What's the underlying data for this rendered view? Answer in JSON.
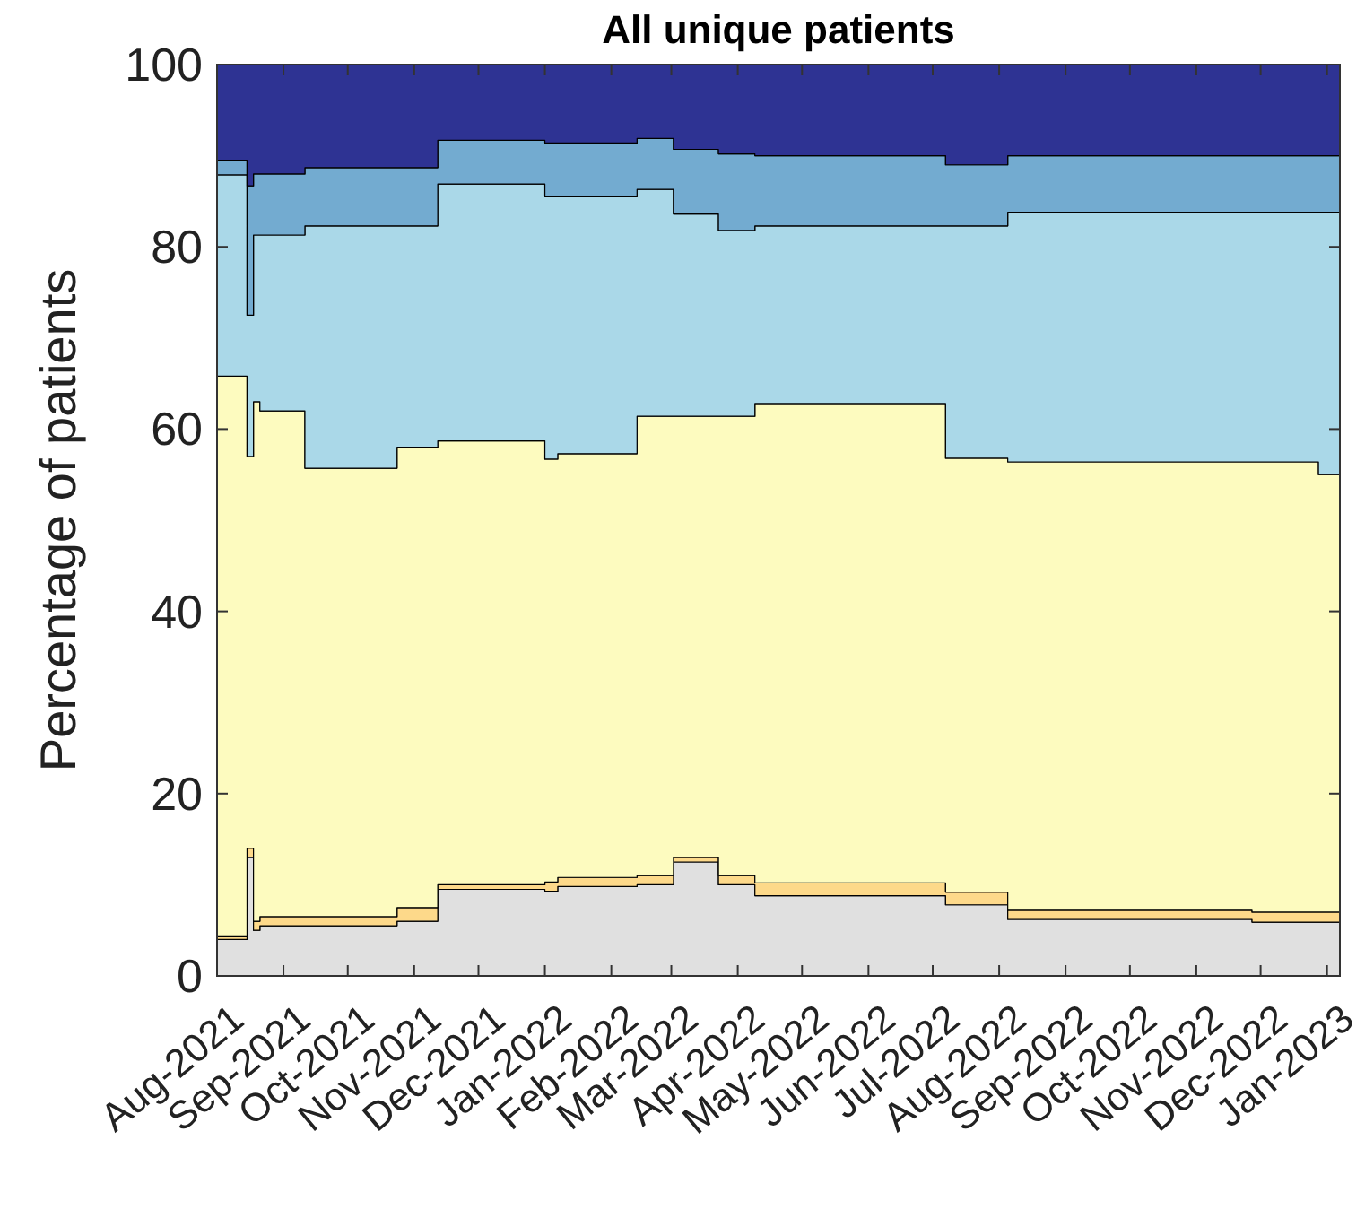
{
  "chart_data": {
    "type": "area",
    "stacked": true,
    "title": "All unique patients",
    "ylabel": "Percentage of patients",
    "x": [
      "2021-08-01",
      "2021-08-15",
      "2021-08-18",
      "2021-08-21",
      "2021-09-11",
      "2021-10-24",
      "2021-11-12",
      "2022-01-01",
      "2022-01-07",
      "2022-02-13",
      "2022-03-02",
      "2022-03-23",
      "2022-04-09",
      "2022-07-07",
      "2022-08-05",
      "2022-11-27",
      "2022-12-28",
      "2023-01-07"
    ],
    "series": [
      {
        "color": "#e0e0e0",
        "values": [
          4,
          13,
          5,
          5.5,
          5.5,
          6,
          9.5,
          9.3,
          9.8,
          10,
          12.5,
          10,
          8.8,
          7.8,
          6.2,
          5.9,
          5.9,
          5.9
        ]
      },
      {
        "color": "#fdd98a",
        "values": [
          0.3,
          1,
          1,
          1,
          1,
          1.5,
          0.5,
          1,
          1,
          1,
          0.5,
          1,
          1.4,
          1.4,
          1,
          1.1,
          1.1,
          1.1
        ]
      },
      {
        "color": "#fdfbbf",
        "values": [
          61.5,
          43,
          57,
          55.5,
          49.2,
          50.5,
          48.7,
          46.4,
          46.5,
          50.4,
          48.4,
          50.4,
          52.6,
          47.6,
          49.2,
          49.4,
          48,
          48
        ]
      },
      {
        "color": "#aad8e8",
        "values": [
          22.1,
          15.5,
          18.3,
          19.3,
          26.6,
          24.3,
          28.2,
          28.8,
          28.2,
          24.9,
          22.2,
          20.4,
          19.5,
          25.5,
          27.4,
          27.4,
          28.8,
          28.8
        ]
      },
      {
        "color": "#73abd0",
        "values": [
          1.6,
          14.2,
          6.7,
          6.7,
          6.4,
          6.4,
          4.8,
          5.9,
          5.9,
          5.6,
          7.1,
          8.4,
          7.7,
          6.7,
          6.2,
          6.2,
          6.2,
          6.2
        ]
      },
      {
        "color": "#2e3393",
        "values": [
          10.5,
          13.3,
          12,
          12,
          11.3,
          11.3,
          8.3,
          8.6,
          8.6,
          8.1,
          9.3,
          9.8,
          10,
          11,
          10,
          10,
          10,
          10
        ]
      }
    ],
    "xlim": [
      "2021-08-01",
      "2023-01-07"
    ],
    "xticks": [
      {
        "value": "2021-08-01",
        "label": "Aug-2021"
      },
      {
        "value": "2021-09-01",
        "label": "Sep-2021"
      },
      {
        "value": "2021-10-01",
        "label": "Oct-2021"
      },
      {
        "value": "2021-11-01",
        "label": "Nov-2021"
      },
      {
        "value": "2021-12-01",
        "label": "Dec-2021"
      },
      {
        "value": "2022-01-01",
        "label": "Jan-2022"
      },
      {
        "value": "2022-02-01",
        "label": "Feb-2022"
      },
      {
        "value": "2022-03-01",
        "label": "Mar-2022"
      },
      {
        "value": "2022-04-01",
        "label": "Apr-2022"
      },
      {
        "value": "2022-05-01",
        "label": "May-2022"
      },
      {
        "value": "2022-06-01",
        "label": "Jun-2022"
      },
      {
        "value": "2022-07-01",
        "label": "Jul-2022"
      },
      {
        "value": "2022-08-01",
        "label": "Aug-2022"
      },
      {
        "value": "2022-09-01",
        "label": "Sep-2022"
      },
      {
        "value": "2022-10-01",
        "label": "Oct-2022"
      },
      {
        "value": "2022-11-01",
        "label": "Nov-2022"
      },
      {
        "value": "2022-12-01",
        "label": "Dec-2022"
      },
      {
        "value": "2023-01-01",
        "label": "Jan-2023"
      }
    ],
    "ylim": [
      0,
      100
    ],
    "yticks": [
      0,
      20,
      40,
      60,
      80,
      100
    ],
    "grid": false
  }
}
